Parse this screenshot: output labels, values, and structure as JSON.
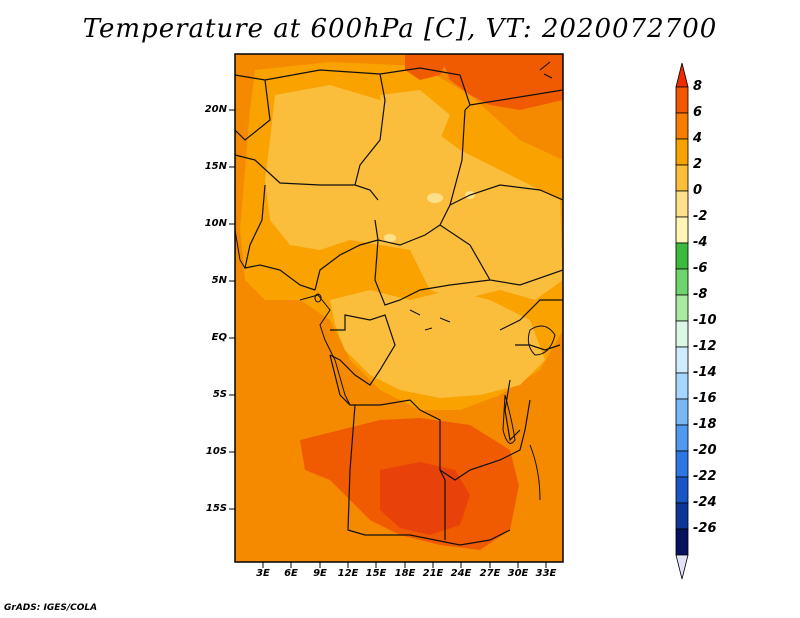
{
  "title": "Temperature at 600hPa [C], VT: 2020072700",
  "credit": "GrADS: IGES/COLA",
  "lat_labels": [
    "20N",
    "15N",
    "10N",
    "5N",
    "EQ",
    "5S",
    "10S",
    "15S"
  ],
  "lon_labels": [
    "3E",
    "6E",
    "9E",
    "12E",
    "15E",
    "18E",
    "21E",
    "24E",
    "27E",
    "30E",
    "33E"
  ],
  "colorbar": {
    "labels": [
      "8",
      "6",
      "4",
      "2",
      "0",
      "-2",
      "-4",
      "-6",
      "-8",
      "-10",
      "-12",
      "-14",
      "-16",
      "-18",
      "-20",
      "-22",
      "-24",
      "-26"
    ],
    "colors": [
      "#ee2c00",
      "#f25800",
      "#f57d00",
      "#f6a200",
      "#f9be3a",
      "#fde08a",
      "#fff5b4",
      "#3dba3d",
      "#6ed46e",
      "#a8eaa0",
      "#dbf7e6",
      "#cfecff",
      "#a5d6ff",
      "#7ab8f5",
      "#4f9aee",
      "#2c78e0",
      "#1a55c4",
      "#0d3796",
      "#08115e",
      "#e3e3f7"
    ]
  },
  "field_colors": {
    "hot": "#f05a00",
    "warm": "#f58a00",
    "mild": "#f9a200",
    "cool": "#fbbd3c",
    "coolest": "#fde08a"
  }
}
